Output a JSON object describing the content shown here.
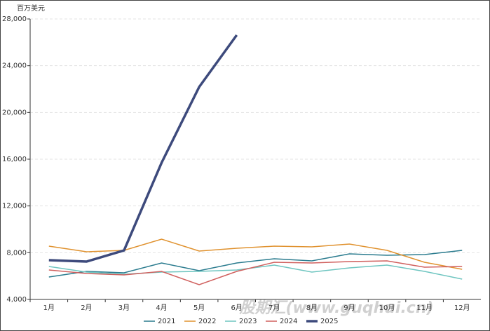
{
  "chart_data": {
    "type": "line",
    "y_label": "百万美元",
    "watermark": "股期汇(www.guqhui.cn)",
    "categories": [
      "1月",
      "2月",
      "3月",
      "4月",
      "5月",
      "6月",
      "7月",
      "8月",
      "9月",
      "10月",
      "11月",
      "12月"
    ],
    "series": [
      {
        "name": "2021",
        "color": "#2a7b8e",
        "width": 1.5,
        "values": [
          5920,
          6400,
          6280,
          7120,
          6460,
          7120,
          7480,
          7300,
          7900,
          7780,
          7840,
          8200
        ]
      },
      {
        "name": "2022",
        "color": "#e0922f",
        "width": 1.5,
        "values": [
          8560,
          8080,
          8200,
          9160,
          8140,
          8380,
          8560,
          8500,
          8740,
          8200,
          7180,
          6580
        ]
      },
      {
        "name": "2023",
        "color": "#6ec5c0",
        "width": 1.5,
        "values": [
          6820,
          6340,
          6160,
          6340,
          6400,
          6520,
          6940,
          6340,
          6700,
          6940,
          6400,
          5740
        ]
      },
      {
        "name": "2024",
        "color": "#d0605e",
        "width": 1.5,
        "values": [
          6520,
          6220,
          6100,
          6400,
          5260,
          6400,
          7180,
          7120,
          7240,
          7300,
          6760,
          6820
        ]
      },
      {
        "name": "2025",
        "color": "#3d4a7c",
        "width": 3.5,
        "values": [
          7360,
          7240,
          8200,
          15700,
          22180,
          26620,
          null,
          null,
          null,
          null,
          null,
          null
        ]
      }
    ],
    "ylim": [
      4000,
      28000
    ],
    "yticks": [
      {
        "value": 4000,
        "label": "4,000"
      },
      {
        "value": 8000,
        "label": "8,000"
      },
      {
        "value": 12000,
        "label": "12,000"
      },
      {
        "value": 16000,
        "label": "16,000"
      },
      {
        "value": 20000,
        "label": "20,000"
      },
      {
        "value": 24000,
        "label": "24,000"
      },
      {
        "value": 28000,
        "label": "28,000"
      }
    ],
    "grid": true,
    "legend": "bottom"
  }
}
